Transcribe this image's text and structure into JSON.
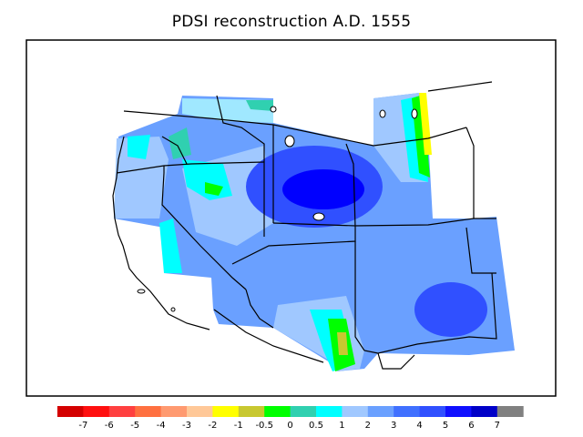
{
  "title": "PDSI reconstruction A.D. 1555",
  "colorbar": {
    "colors": [
      "#d40000",
      "#ff1010",
      "#ff4040",
      "#ff7040",
      "#ff9a70",
      "#ffc898",
      "#ffff00",
      "#c8c830",
      "#00ff00",
      "#30d0b0",
      "#00ffff",
      "#a0c8ff",
      "#6aa0ff",
      "#4070ff",
      "#3050ff",
      "#1010ff",
      "#0000c8",
      "#808080"
    ],
    "labels": [
      "-7",
      "-6",
      "-5",
      "-4",
      "-3",
      "-2",
      "-1",
      "-0.5",
      "0",
      "0.5",
      "1",
      "2",
      "3",
      "4",
      "5",
      "6",
      "7"
    ]
  },
  "map_colors": {
    "background_blue": "#4070ff",
    "mid_blue": "#6aa0ff",
    "light_blue": "#a0c8ff",
    "pale_cyan": "#a0e8ff",
    "cyan": "#00ffff",
    "teal": "#30d0b0",
    "green": "#00ff00",
    "yellow_green": "#c8c830",
    "yellow": "#ffff00",
    "deep_blue": "#0000ff",
    "blue": "#3050ff"
  }
}
